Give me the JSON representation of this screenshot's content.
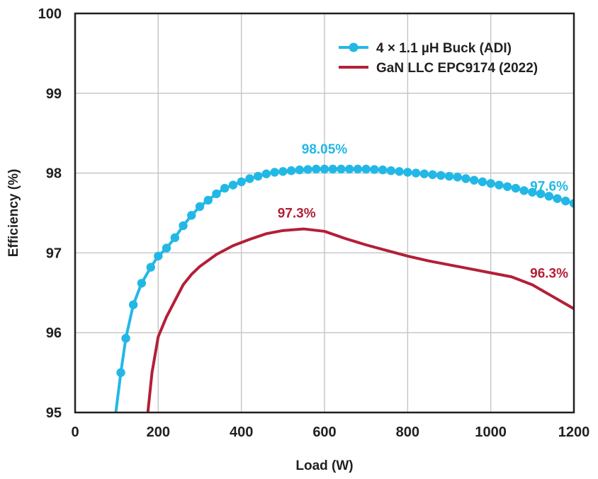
{
  "chart_data": {
    "type": "line",
    "xlabel": "Load (W)",
    "ylabel": "Efficiency (%)",
    "xlim": [
      0,
      1200
    ],
    "ylim": [
      95,
      100
    ],
    "xticks": [
      0,
      200,
      400,
      600,
      800,
      1000,
      1200
    ],
    "yticks": [
      95,
      96,
      97,
      98,
      99,
      100
    ],
    "grid": true,
    "legend_position": "top-right",
    "series": [
      {
        "name": "4 × 1.1 µH Buck (ADI)",
        "color": "#22b8e6",
        "marker": "circle",
        "x": [
          98,
          110,
          122,
          140,
          160,
          182,
          200,
          220,
          240,
          260,
          280,
          300,
          320,
          340,
          360,
          380,
          400,
          420,
          440,
          460,
          480,
          500,
          520,
          540,
          560,
          580,
          600,
          620,
          640,
          660,
          680,
          700,
          720,
          740,
          760,
          780,
          800,
          820,
          840,
          860,
          880,
          900,
          920,
          940,
          960,
          980,
          1000,
          1020,
          1040,
          1060,
          1080,
          1100,
          1120,
          1140,
          1160,
          1180,
          1200
        ],
        "y": [
          95.0,
          95.5,
          95.93,
          96.35,
          96.62,
          96.82,
          96.96,
          97.06,
          97.19,
          97.34,
          97.47,
          97.58,
          97.66,
          97.74,
          97.81,
          97.85,
          97.89,
          97.93,
          97.96,
          97.99,
          98.01,
          98.02,
          98.03,
          98.04,
          98.045,
          98.05,
          98.05,
          98.05,
          98.05,
          98.05,
          98.05,
          98.05,
          98.045,
          98.04,
          98.03,
          98.02,
          98.01,
          98.0,
          97.99,
          97.98,
          97.97,
          97.96,
          97.95,
          97.93,
          97.91,
          97.89,
          97.87,
          97.85,
          97.83,
          97.81,
          97.78,
          97.76,
          97.74,
          97.71,
          97.68,
          97.65,
          97.62
        ],
        "labeled_points": [
          {
            "label": "98.05%",
            "x": 600,
            "y": 98.05
          },
          {
            "label": "97.6%",
            "x": 1200,
            "y": 97.6
          }
        ]
      },
      {
        "name": "GaN LLC EPC9174 (2022)",
        "color": "#b31f37",
        "marker": "none",
        "x": [
          175,
          185,
          200,
          220,
          240,
          260,
          280,
          300,
          340,
          380,
          420,
          460,
          500,
          550,
          600,
          650,
          700,
          750,
          800,
          850,
          900,
          950,
          1000,
          1050,
          1100,
          1150,
          1200
        ],
        "y": [
          95.0,
          95.5,
          95.95,
          96.2,
          96.4,
          96.6,
          96.73,
          96.83,
          96.98,
          97.09,
          97.17,
          97.24,
          97.28,
          97.3,
          97.27,
          97.18,
          97.1,
          97.03,
          96.96,
          96.9,
          96.85,
          96.8,
          96.75,
          96.7,
          96.6,
          96.45,
          96.3
        ],
        "labeled_points": [
          {
            "label": "97.3%",
            "x": 550,
            "y": 97.3
          },
          {
            "label": "96.3%",
            "x": 1200,
            "y": 96.3
          }
        ]
      }
    ]
  }
}
